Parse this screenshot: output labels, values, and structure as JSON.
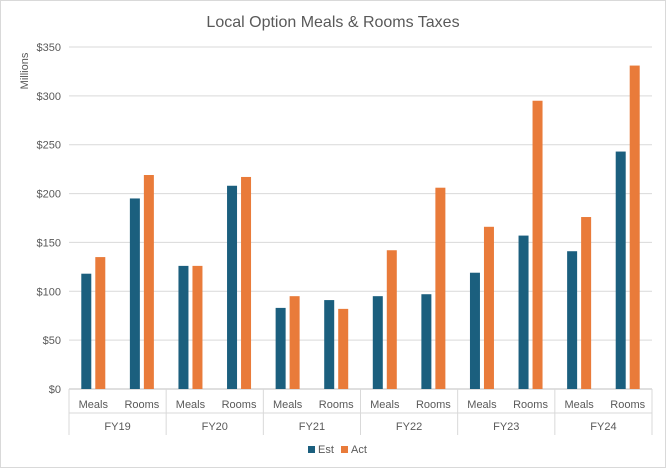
{
  "chart_data": {
    "type": "bar",
    "title": "Local Option Meals & Rooms Taxes",
    "ylabel": "Millions",
    "ylim": [
      0,
      350
    ],
    "yticks": [
      "$0",
      "$50",
      "$100",
      "$150",
      "$200",
      "$250",
      "$300",
      "$350"
    ],
    "ytick_values": [
      0,
      50,
      100,
      150,
      200,
      250,
      300,
      350
    ],
    "groups": [
      "FY19",
      "FY20",
      "FY21",
      "FY22",
      "FY23",
      "FY24"
    ],
    "subcategories": [
      "Meals",
      "Rooms"
    ],
    "series": [
      {
        "name": "Est",
        "color": "#1b5f7e",
        "values": [
          118,
          195,
          126,
          208,
          83,
          91,
          95,
          97,
          119,
          157,
          141,
          243
        ]
      },
      {
        "name": "Act",
        "color": "#e97b3a",
        "values": [
          135,
          219,
          126,
          217,
          95,
          82,
          142,
          206,
          166,
          295,
          176,
          331
        ]
      }
    ],
    "grid": true,
    "legend": "bottom"
  }
}
